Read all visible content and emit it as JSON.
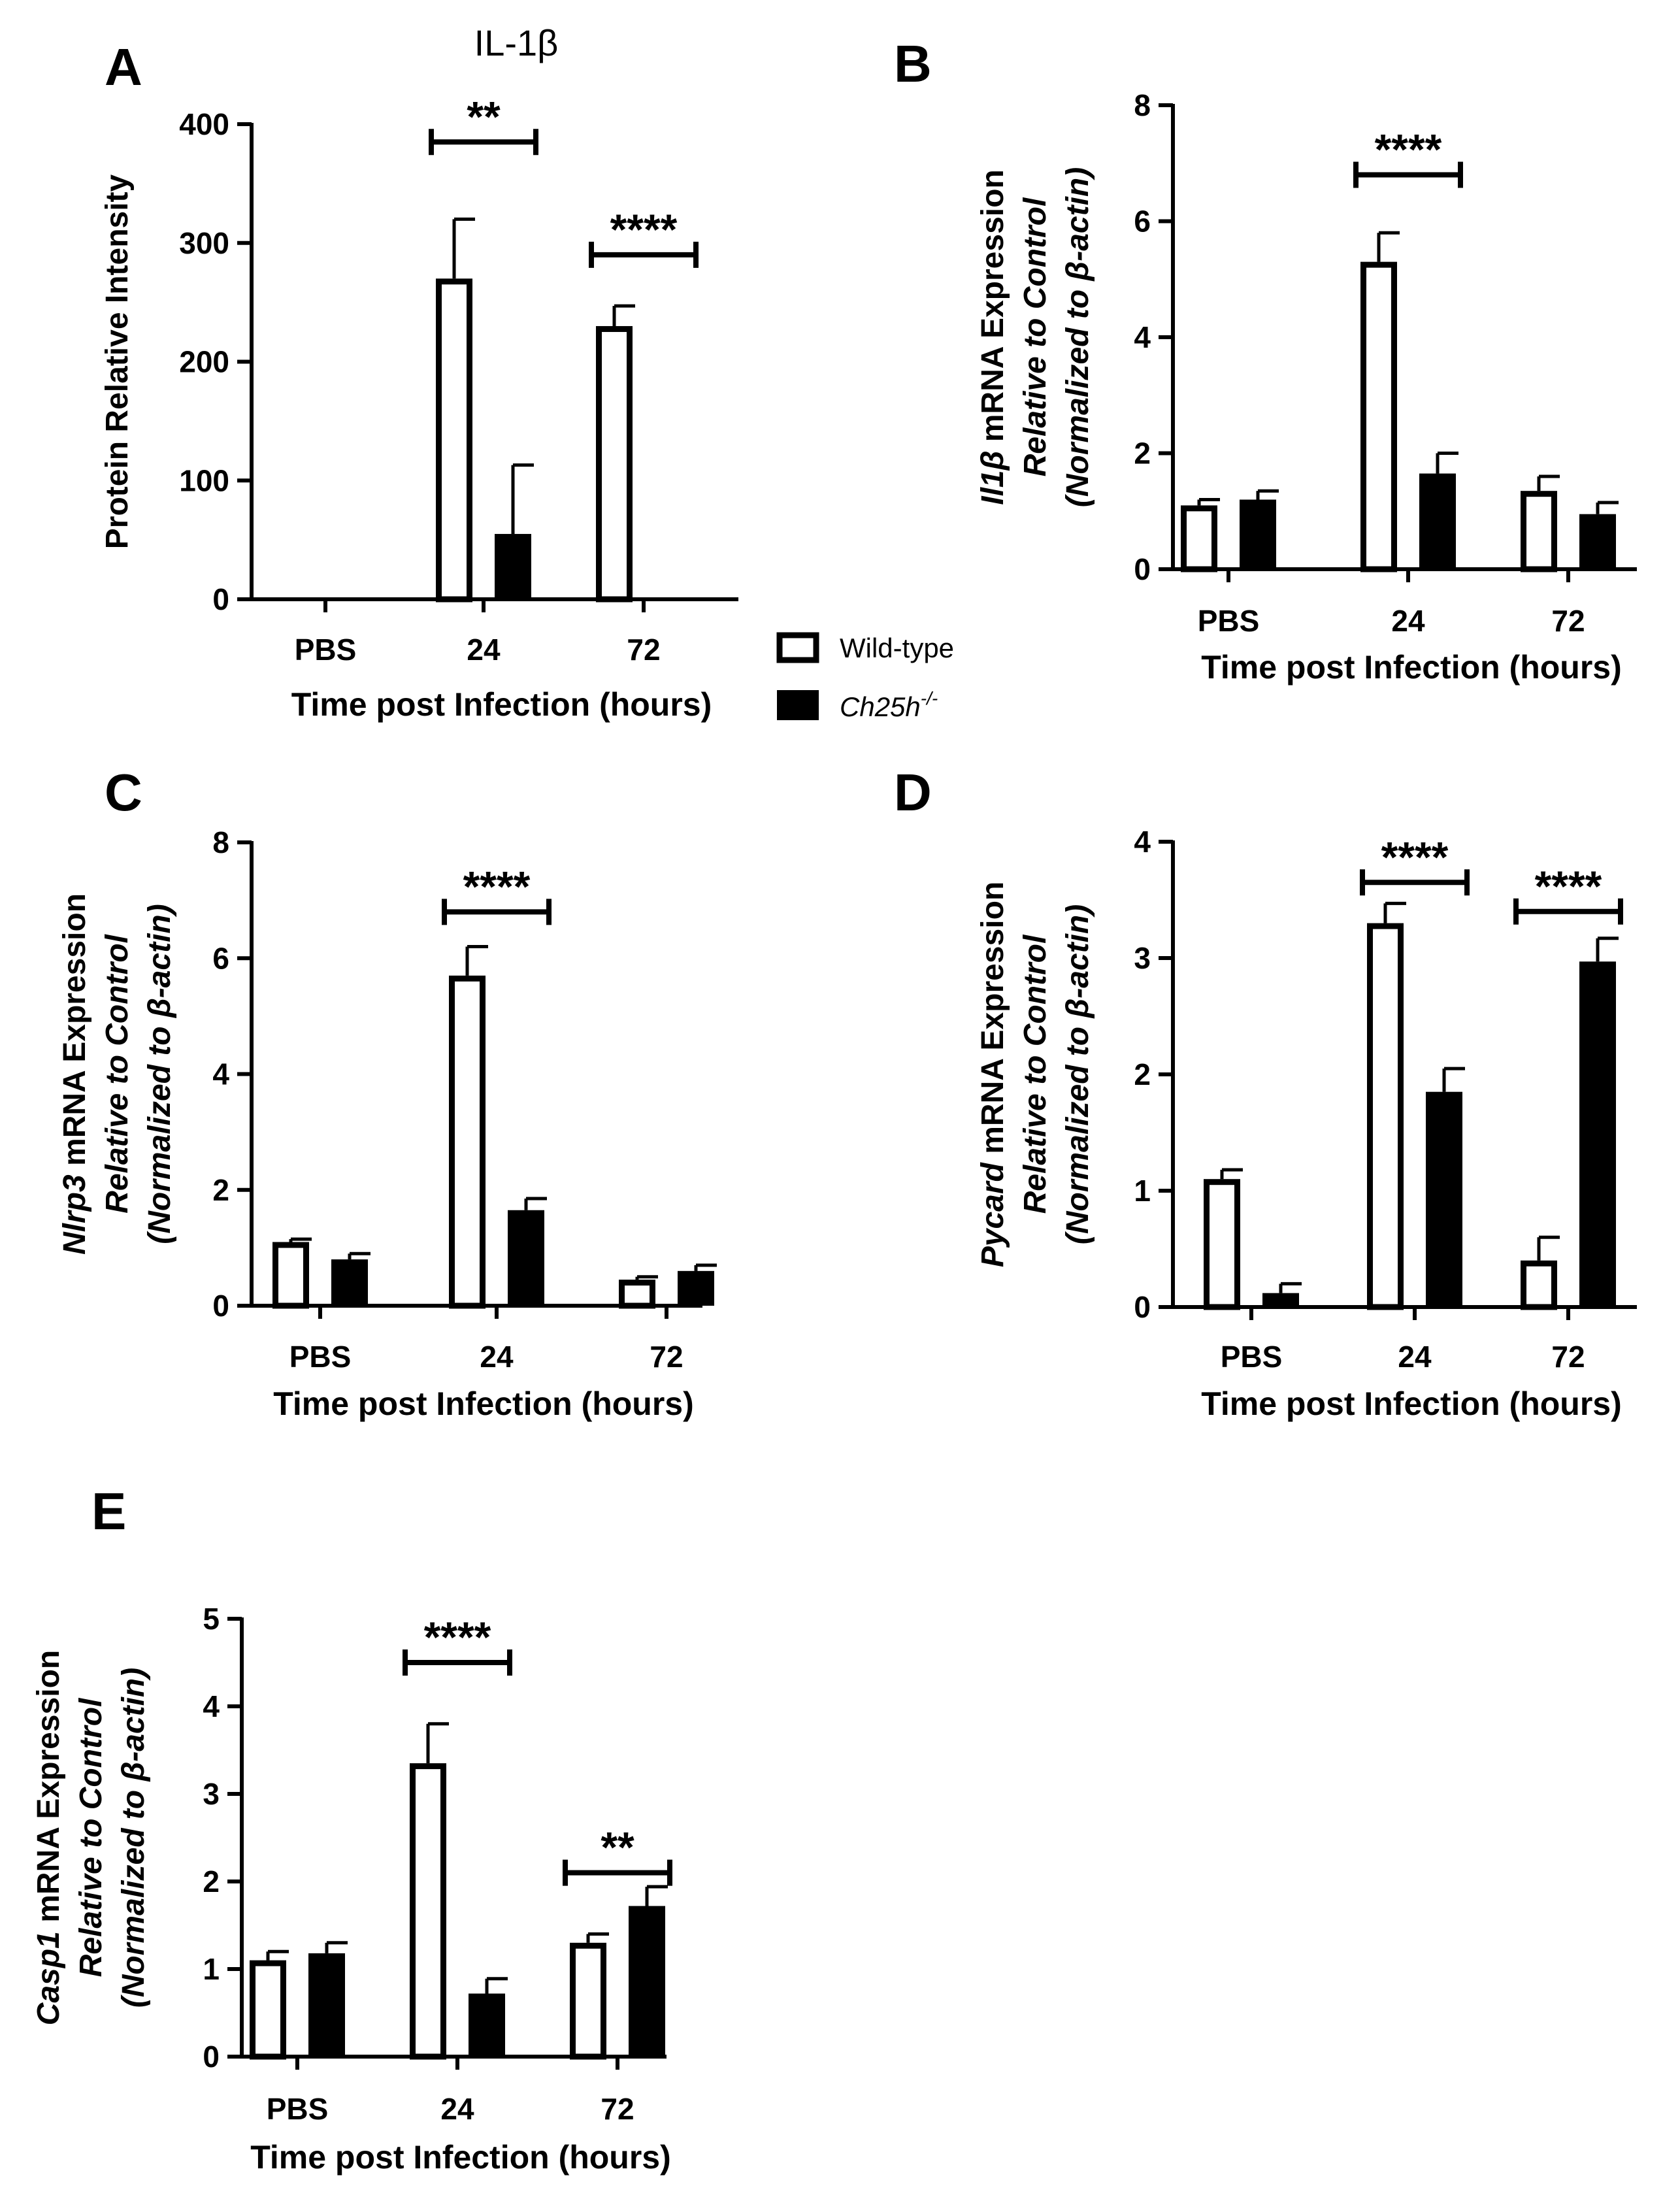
{
  "legend": {
    "entries": [
      {
        "label": "Wild-type",
        "color": "#ffffff"
      },
      {
        "label": "Ch25h",
        "label_superscript": "-/-",
        "color": "#000000"
      }
    ]
  },
  "chart_data": [
    {
      "type": "bar",
      "panel": "A",
      "title": "IL-1β",
      "ylabel_lines": [
        [
          "Protein Relative Intensity"
        ]
      ],
      "xlabel": "Time post Infection (hours)",
      "categories": [
        "PBS",
        "24",
        "72"
      ],
      "ylim": [
        0,
        400
      ],
      "yticks": [
        0,
        100,
        200,
        300,
        400
      ],
      "series": [
        {
          "name": "Wild-type",
          "color": "#ffffff",
          "values": [
            0,
            270,
            230
          ],
          "errors": [
            0,
            50,
            17
          ]
        },
        {
          "name": "Ch25h-/-",
          "color": "#000000",
          "values": [
            0,
            55,
            null
          ],
          "errors": [
            0,
            58,
            null
          ]
        }
      ],
      "significance": [
        {
          "category_index": 1,
          "label": "**",
          "y": 385
        },
        {
          "category_index": 2,
          "label": "****",
          "y": 290
        }
      ]
    },
    {
      "type": "bar",
      "panel": "B",
      "ylabel_lines": [
        [
          "Il1β",
          " mRNA Expression"
        ],
        [
          "Relative to Control"
        ],
        [
          "(Normalized to β-actin)"
        ]
      ],
      "xlabel": "Time post Infection (hours)",
      "categories": [
        "PBS",
        "24",
        "72"
      ],
      "ylim": [
        0,
        8
      ],
      "yticks": [
        0,
        2,
        4,
        6,
        8
      ],
      "series": [
        {
          "name": "Wild-type",
          "color": "#ffffff",
          "values": [
            1.1,
            5.3,
            1.35
          ],
          "errors": [
            0.1,
            0.5,
            0.25
          ]
        },
        {
          "name": "Ch25h-/-",
          "color": "#000000",
          "values": [
            1.2,
            1.65,
            0.95
          ],
          "errors": [
            0.15,
            0.35,
            0.2
          ]
        }
      ],
      "significance": [
        {
          "category_index": 1,
          "label": "****",
          "y": 6.8
        }
      ]
    },
    {
      "type": "bar",
      "panel": "C",
      "ylabel_lines": [
        [
          "Nlrp3",
          " mRNA Expression"
        ],
        [
          "Relative to Control"
        ],
        [
          "(Normalized to β-actin)"
        ]
      ],
      "xlabel": "Time post Infection (hours)",
      "categories": [
        "PBS",
        "24",
        "72"
      ],
      "ylim": [
        0,
        8
      ],
      "yticks": [
        0,
        2,
        4,
        6,
        8
      ],
      "series": [
        {
          "name": "Wild-type",
          "color": "#ffffff",
          "values": [
            1.1,
            5.7,
            0.45
          ],
          "errors": [
            0.05,
            0.5,
            0.05
          ]
        },
        {
          "name": "Ch25h-/-",
          "color": "#000000",
          "values": [
            0.8,
            1.65,
            0.6
          ],
          "errors": [
            0.1,
            0.2,
            0.1
          ]
        }
      ],
      "significance": [
        {
          "category_index": 1,
          "label": "****",
          "y": 6.8
        }
      ]
    },
    {
      "type": "bar",
      "panel": "D",
      "ylabel_lines": [
        [
          "Pycard",
          " mRNA Expression"
        ],
        [
          "Relative to Control"
        ],
        [
          "(Normalized to β-actin)"
        ]
      ],
      "xlabel": "Time post Infection (hours)",
      "categories": [
        "PBS",
        "24",
        "72"
      ],
      "ylim": [
        0,
        4
      ],
      "yticks": [
        0,
        1,
        2,
        3,
        4
      ],
      "series": [
        {
          "name": "Wild-type",
          "color": "#ffffff",
          "values": [
            1.1,
            3.3,
            0.4
          ],
          "errors": [
            0.08,
            0.17,
            0.2
          ]
        },
        {
          "name": "Ch25h-/-",
          "color": "#000000",
          "values": [
            0.12,
            1.85,
            2.97
          ],
          "errors": [
            0.08,
            0.2,
            0.2
          ]
        }
      ],
      "significance": [
        {
          "category_index": 1,
          "label": "****",
          "y": 3.65
        },
        {
          "category_index": 2,
          "label": "****",
          "y": 3.4
        }
      ]
    },
    {
      "type": "bar",
      "panel": "E",
      "ylabel_lines": [
        [
          "Casp1",
          " mRNA Expression"
        ],
        [
          "Relative to Control"
        ],
        [
          "(Normalized to β-actin)"
        ]
      ],
      "xlabel": "Time post Infection (hours)",
      "categories": [
        "PBS",
        "24",
        "72"
      ],
      "ylim": [
        0,
        5
      ],
      "yticks": [
        0,
        1,
        2,
        3,
        4,
        5
      ],
      "series": [
        {
          "name": "Wild-type",
          "color": "#ffffff",
          "values": [
            1.1,
            3.35,
            1.3
          ],
          "errors": [
            0.1,
            0.45,
            0.1
          ]
        },
        {
          "name": "Ch25h-/-",
          "color": "#000000",
          "values": [
            1.18,
            0.72,
            1.72
          ],
          "errors": [
            0.12,
            0.17,
            0.22
          ]
        }
      ],
      "significance": [
        {
          "category_index": 1,
          "label": "****",
          "y": 4.5
        },
        {
          "category_index": 2,
          "label": "**",
          "y": 2.1
        }
      ]
    }
  ]
}
